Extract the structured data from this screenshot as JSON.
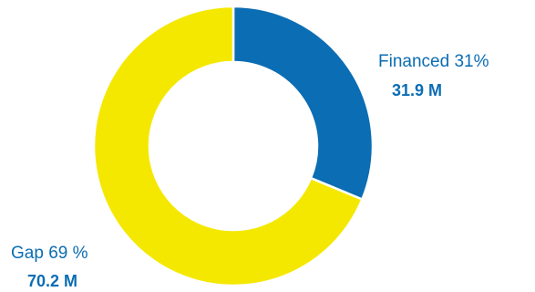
{
  "chart_data": {
    "type": "pie",
    "variant": "donut",
    "title": "",
    "slices": [
      {
        "key": "financed",
        "label": "Financed 31%",
        "value_label": "31.9 M",
        "value": 31.9,
        "percent": 31,
        "color": "#0b6db3",
        "text_color": "#0b6db3"
      },
      {
        "key": "gap",
        "label": "Gap 69 %",
        "value_label": "70.2 M",
        "value": 70.2,
        "percent": 69,
        "color": "#f5e800",
        "text_color": "#0b6db3"
      }
    ],
    "legend": "none"
  }
}
